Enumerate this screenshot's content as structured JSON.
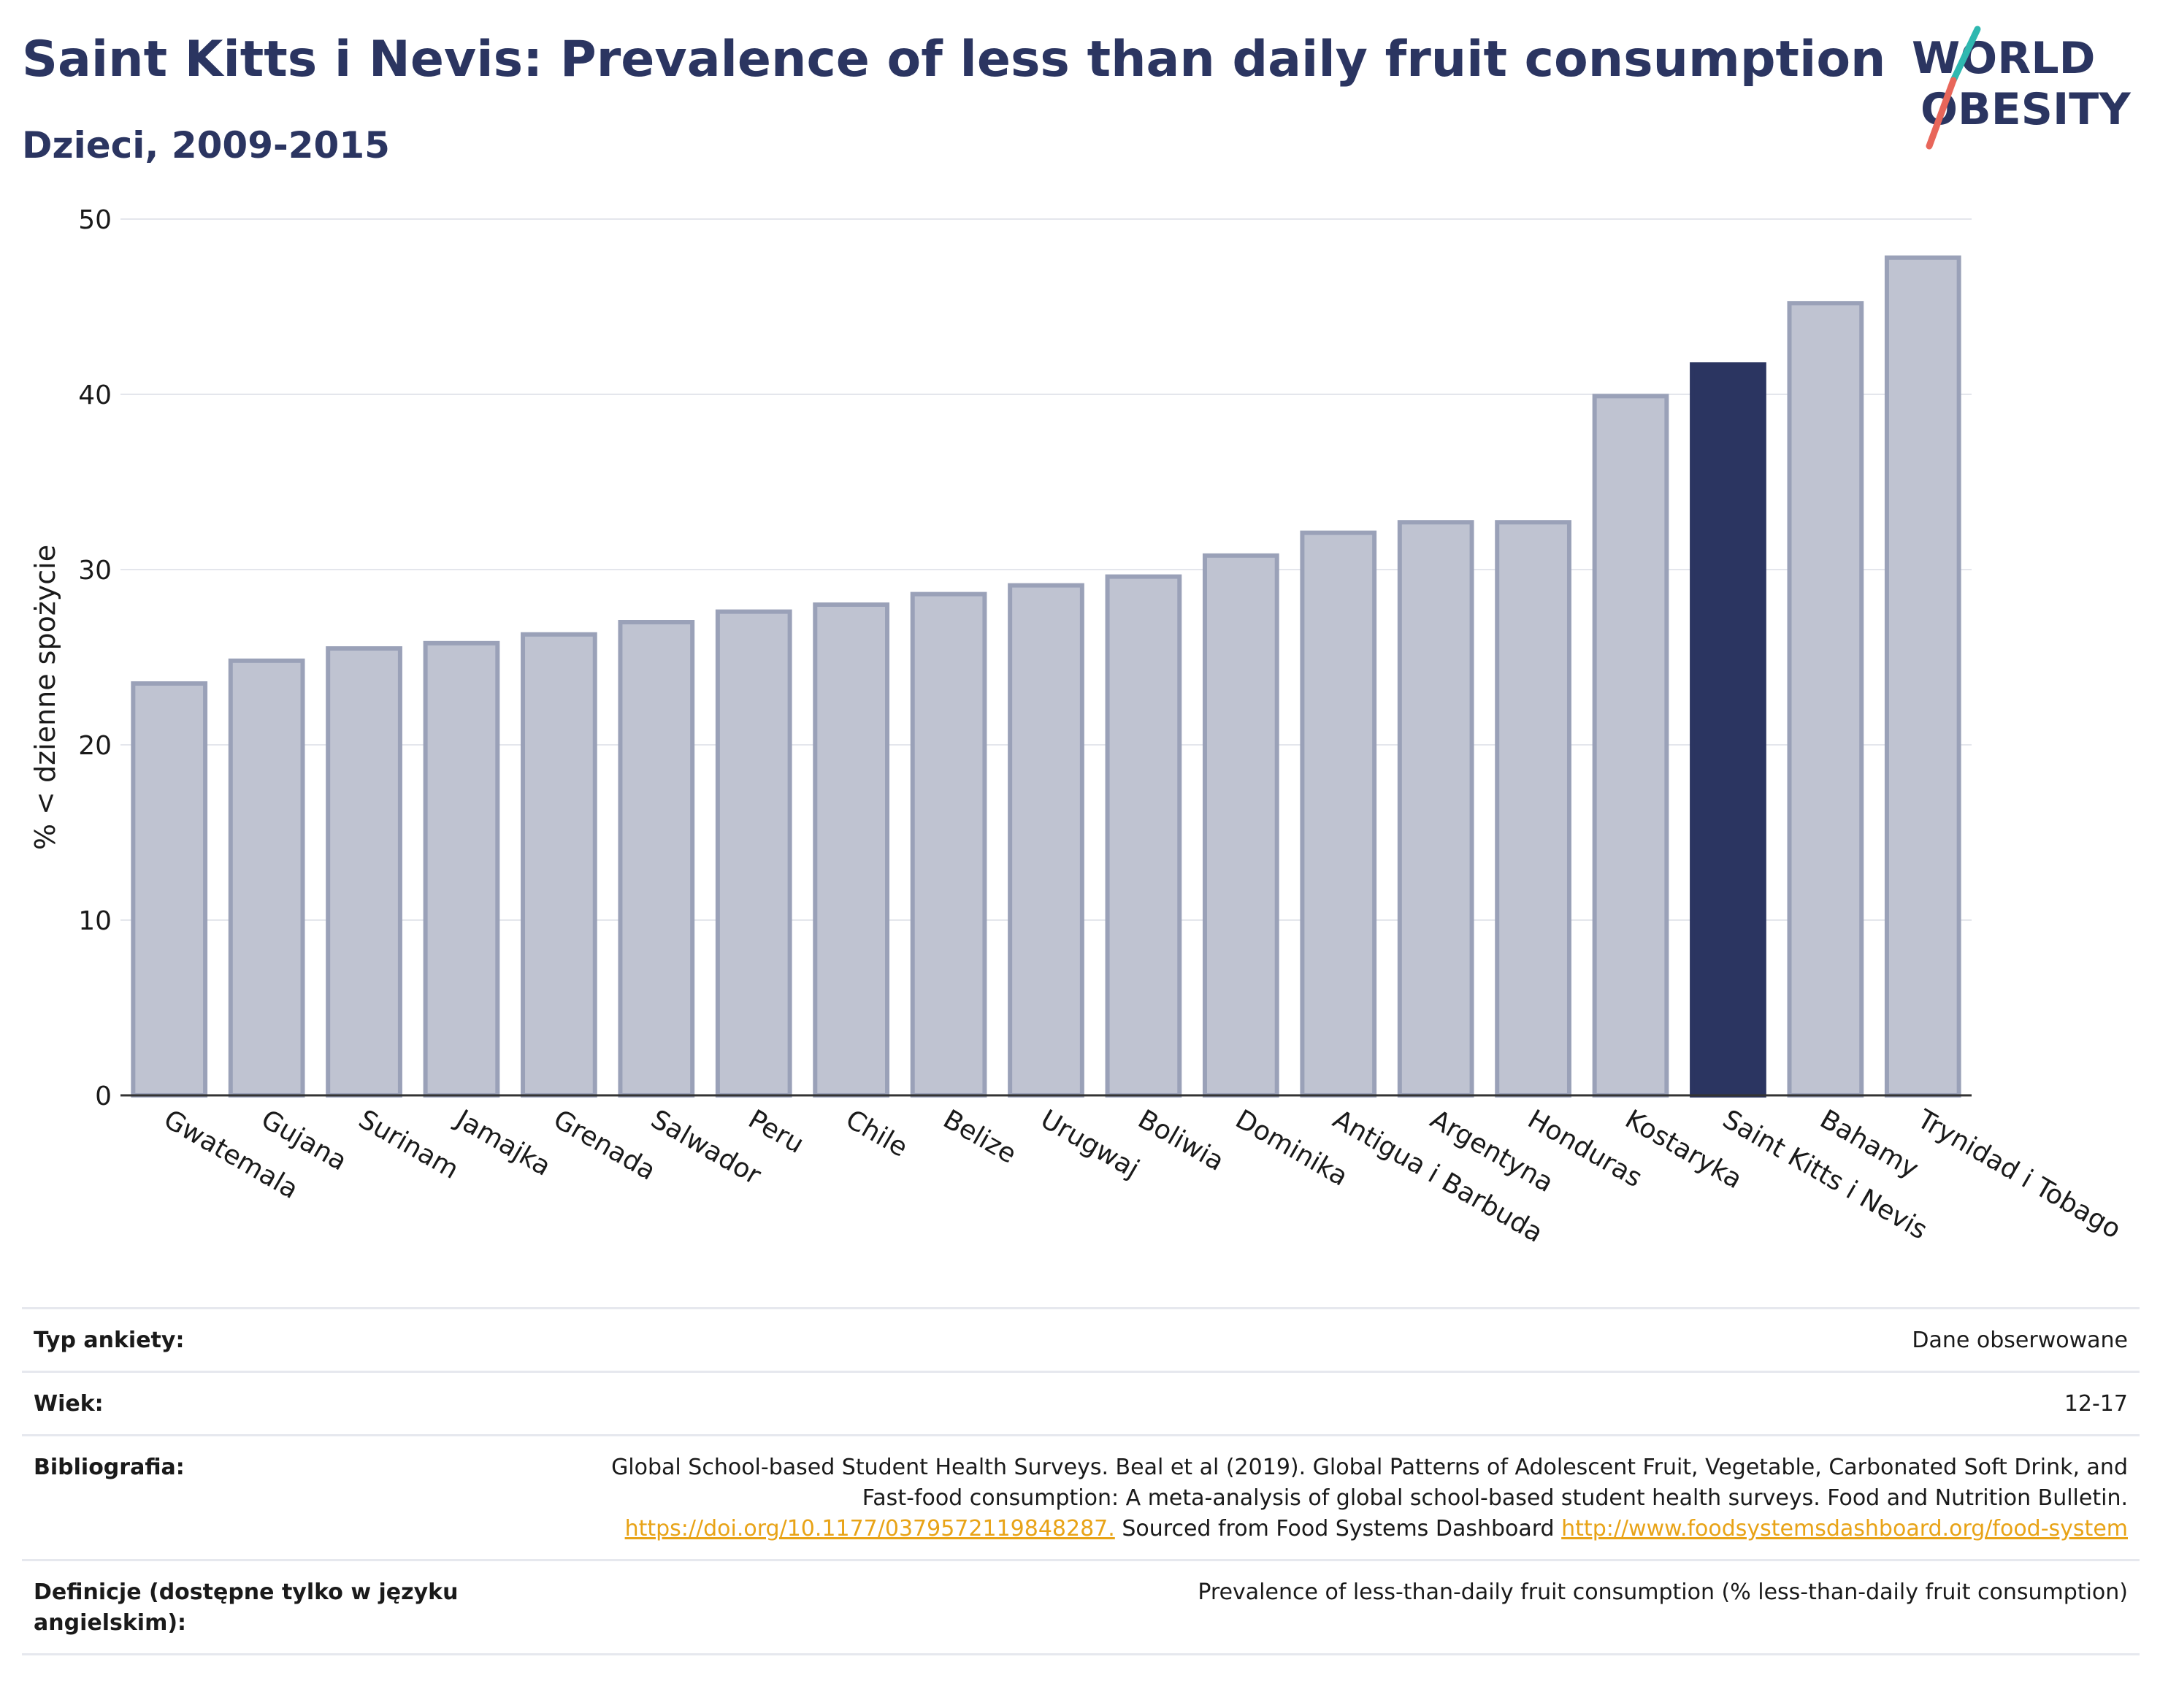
{
  "header": {
    "title": "Saint Kitts i Nevis: Prevalence of less than daily fruit consumption",
    "subtitle": "Dzieci, 2009-2015"
  },
  "logo": {
    "line1": "WORLD",
    "line2": "OBESITY"
  },
  "chart_data": {
    "type": "bar",
    "categories": [
      "Gwatemala",
      "Gujana",
      "Surinam",
      "Jamajka",
      "Grenada",
      "Salwador",
      "Peru",
      "Chile",
      "Belize",
      "Urugwaj",
      "Boliwia",
      "Dominika",
      "Antigua i Barbuda",
      "Argentyna",
      "Honduras",
      "Kostaryka",
      "Saint Kitts i Nevis",
      "Bahamy",
      "Trynidad i Tobago"
    ],
    "values": [
      23.5,
      24.8,
      25.5,
      25.8,
      26.3,
      27.0,
      27.6,
      28.0,
      28.6,
      29.1,
      29.6,
      30.8,
      32.1,
      32.7,
      32.7,
      39.9,
      41.7,
      45.2,
      47.8
    ],
    "highlight": "Saint Kitts i Nevis",
    "ylabel": "% < dzienne spożycie",
    "ylim": [
      0,
      50
    ],
    "yticks": [
      0,
      10,
      20,
      30,
      40,
      50
    ],
    "grid": true,
    "colors": {
      "bar": "#bfc3d1",
      "bar_border": "#9aa1b8",
      "highlight": "#2b3561",
      "grid": "#e4e6ec"
    }
  },
  "info": {
    "survey_label": "Typ ankiety:",
    "survey_value": "Dane obserwowane",
    "age_label": "Wiek:",
    "age_value": "12-17",
    "bib_label": "Bibliografia:",
    "bib_text1": "Global School-based Student Health Surveys. Beal et al (2019). Global Patterns of Adolescent Fruit, Vegetable, Carbonated Soft Drink, and Fast-food consumption: A meta-analysis of global school-based student health surveys. Food and Nutrition Bulletin.",
    "bib_link1": "https://doi.org/10.1177/0379572119848287.",
    "bib_text2": "Sourced from Food Systems Dashboard",
    "bib_link2": "http://www.foodsystemsdashboard.org/food-system",
    "def_label": "Definicje (dostępne tylko w języku angielskim):",
    "def_value": "Prevalence of less-than-daily fruit consumption (% less-than-daily fruit consumption)"
  }
}
